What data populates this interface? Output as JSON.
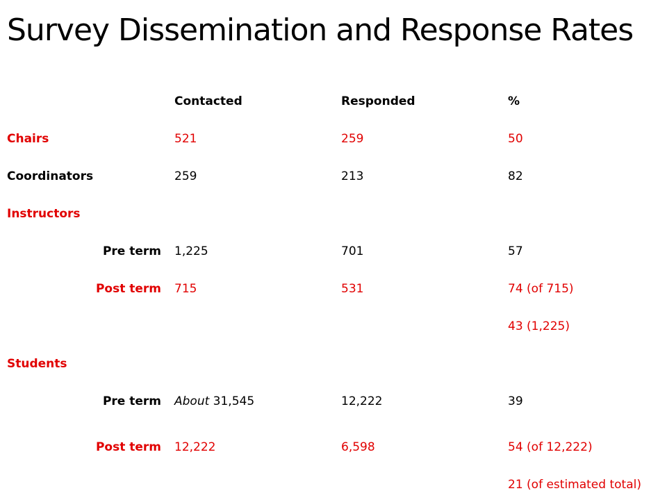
{
  "title": "Survey Dissemination and Response Rates",
  "header": {
    "contacted": "Contacted",
    "responded": "Responded",
    "percent": "%"
  },
  "rows": {
    "chairs": {
      "label": "Chairs",
      "contacted": "521",
      "responded": "259",
      "percent": "50"
    },
    "coordinators": {
      "label": "Coordinators",
      "contacted": "259",
      "responded": "213",
      "percent": "82"
    },
    "instructors": {
      "label": "Instructors"
    },
    "instructors_pre": {
      "label": "Pre term",
      "contacted": "1,225",
      "responded": "701",
      "percent": "57"
    },
    "instructors_post": {
      "label": "Post term",
      "contacted": "715",
      "responded": "531",
      "percent": "74 (of 715)"
    },
    "instructors_post_extra": {
      "percent": "43 (1,225)"
    },
    "students": {
      "label": "Students"
    },
    "students_pre": {
      "label": "Pre term",
      "contacted_prefix": "About",
      "contacted": "31,545",
      "responded": "12,222",
      "percent": "39"
    },
    "students_post": {
      "label": "Post term",
      "contacted": "12,222",
      "responded": "6,598",
      "percent": "54 (of 12,222)"
    },
    "students_post_extra": {
      "percent": "21 (of estimated total)"
    }
  },
  "colors": {
    "accent_red": "#e10000",
    "text": "#000000",
    "background": "#ffffff"
  }
}
